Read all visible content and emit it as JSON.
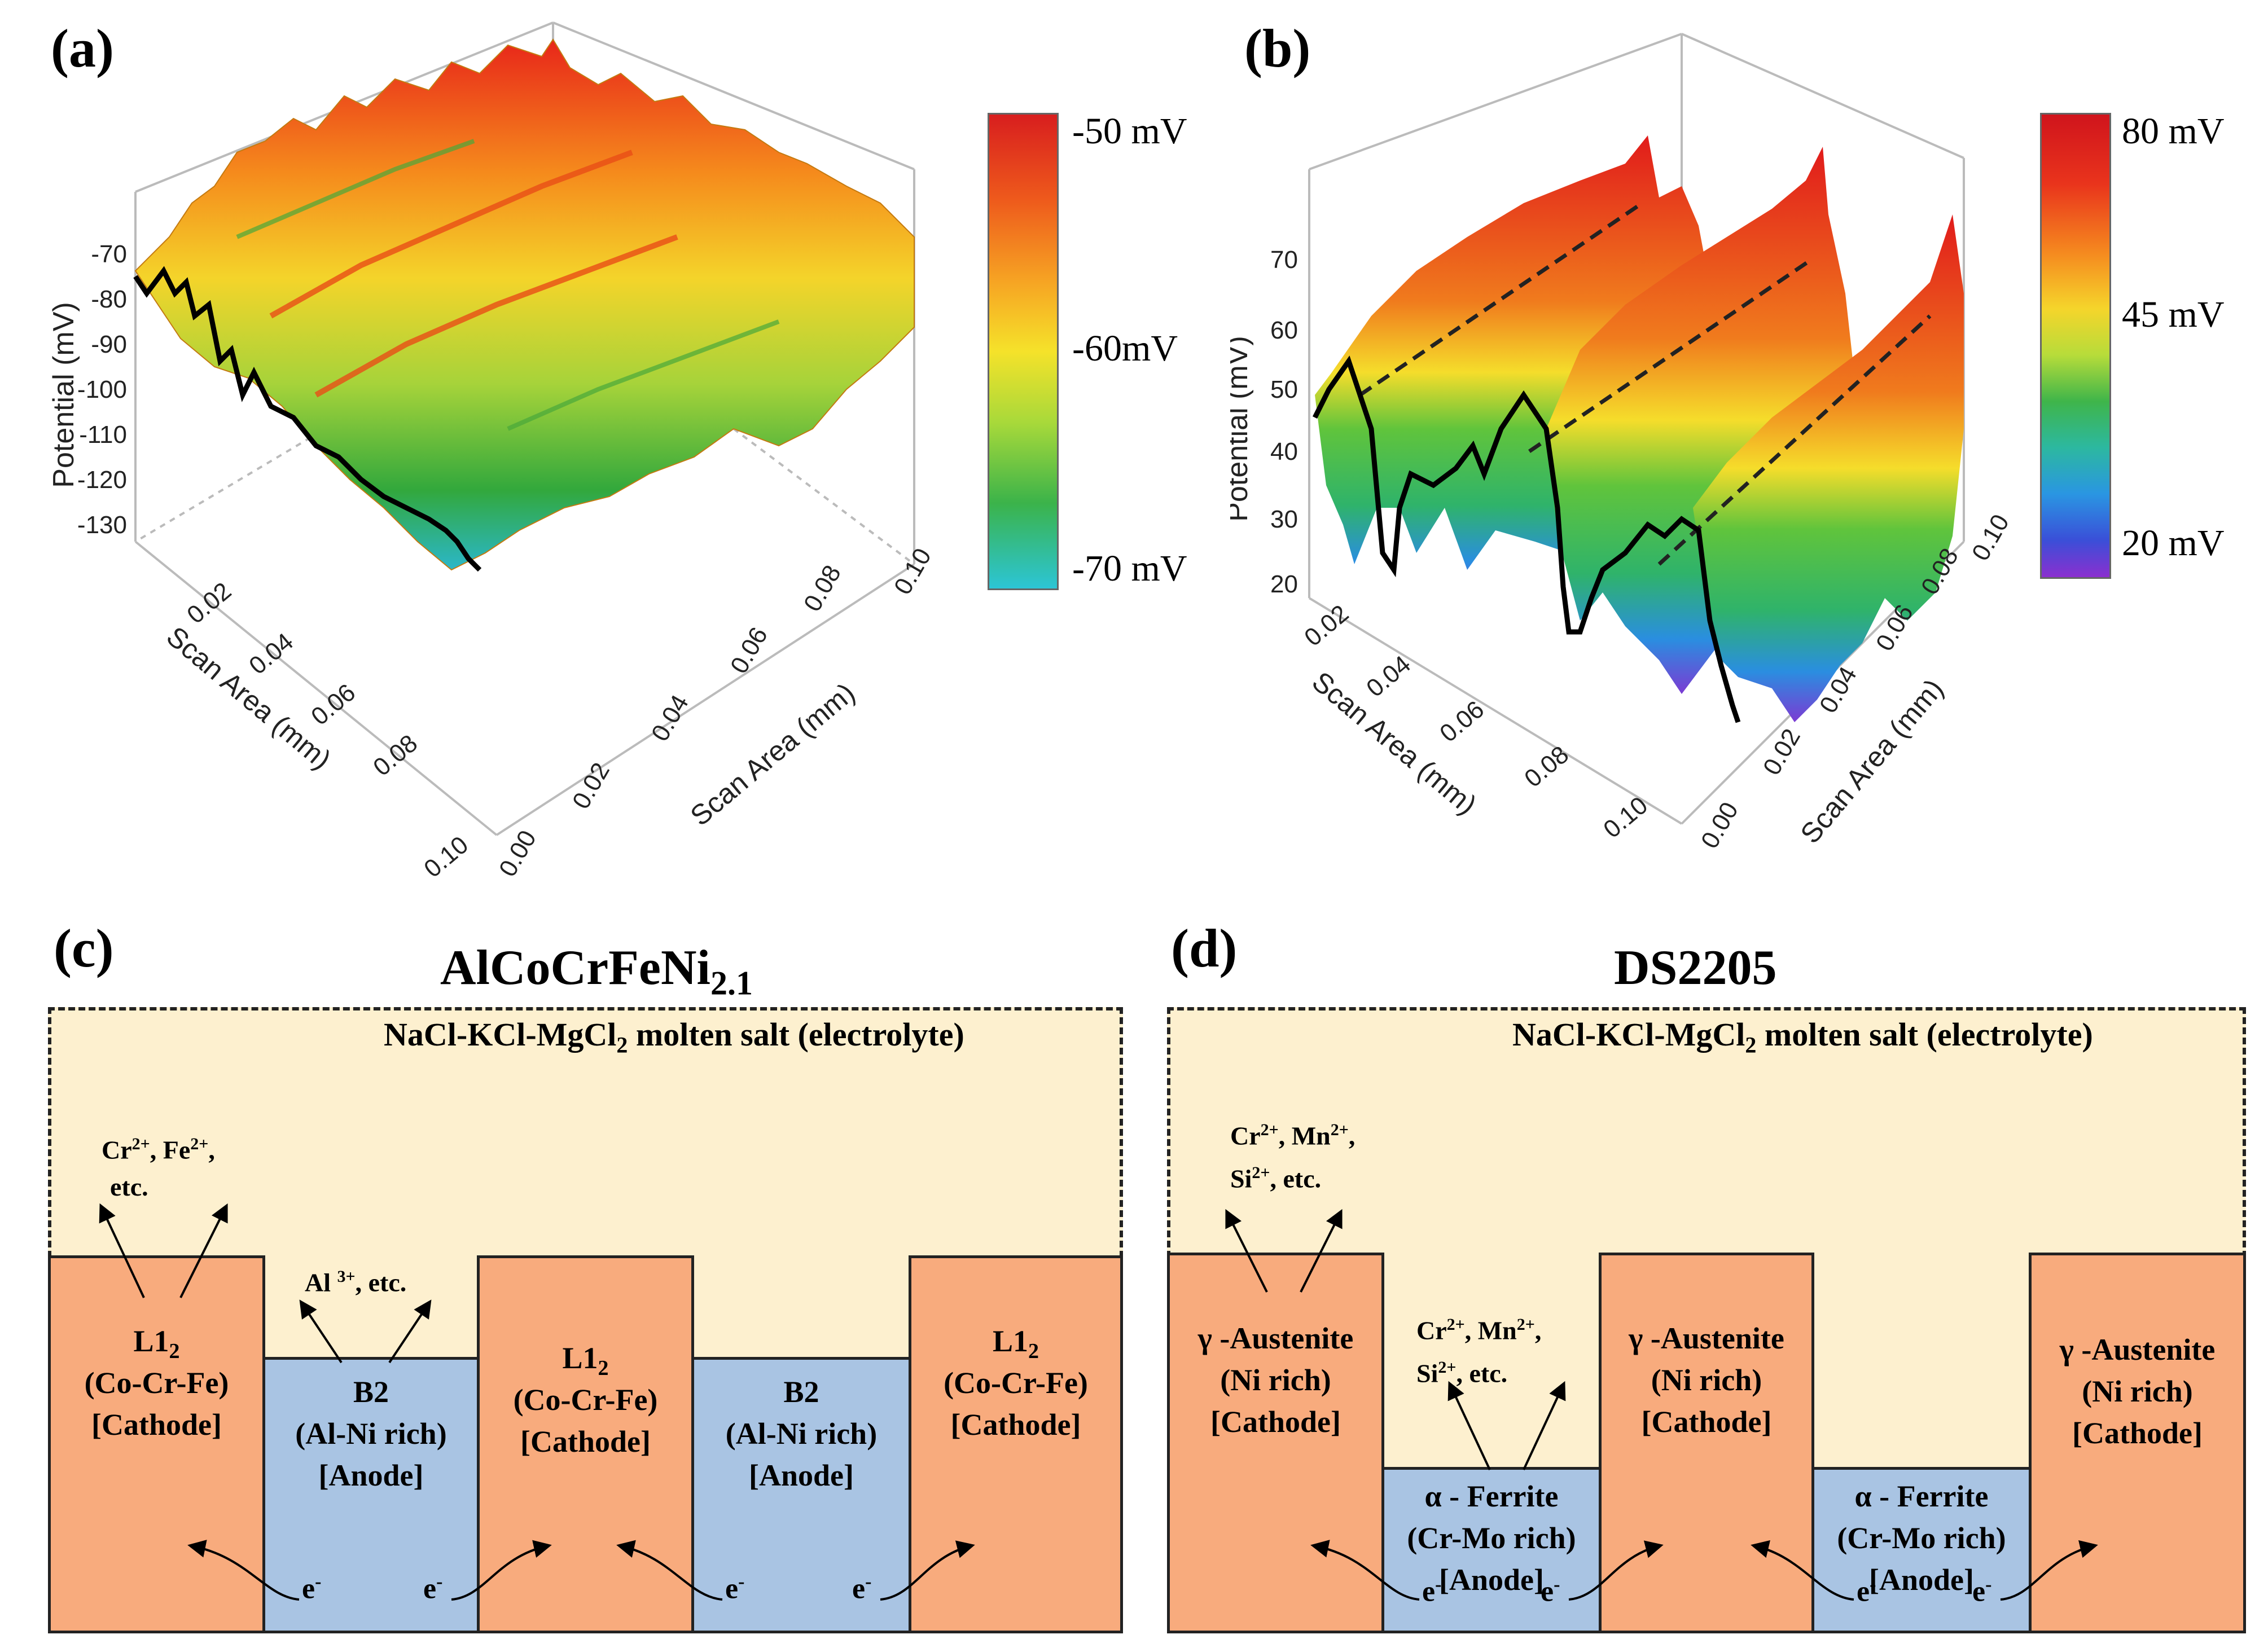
{
  "panel_a": {
    "label": "(a)",
    "z_axis_label": "Potential (mV)",
    "z_ticks": [
      "-70",
      "-80",
      "-90",
      "-100",
      "-110",
      "-120",
      "-130"
    ],
    "x_axis_label": "Scan Area (mm)",
    "x_ticks": [
      "0.02",
      "0.04",
      "0.06",
      "0.08",
      "0.10"
    ],
    "y_axis_label": "Scan Area (mm)",
    "y_ticks": [
      "0.00",
      "0.02",
      "0.04",
      "0.06",
      "0.08",
      "0.10"
    ],
    "colorbar_labels": [
      "-50 mV",
      "-60mV",
      "-70 mV"
    ],
    "colorbar_range_mV": [
      -70,
      -50
    ]
  },
  "panel_b": {
    "label": "(b)",
    "z_axis_label": "Potential (mV)",
    "z_ticks": [
      "70",
      "60",
      "50",
      "40",
      "30",
      "20"
    ],
    "x_axis_label": "Scan Area (mm)",
    "x_ticks": [
      "0.02",
      "0.04",
      "0.06",
      "0.08",
      "0.10"
    ],
    "y_axis_label": "Scan Area (mm)",
    "y_ticks": [
      "0.00",
      "0.02",
      "0.04",
      "0.06",
      "0.08",
      "0.10"
    ],
    "colorbar_labels": [
      "80  mV",
      "45  mV",
      "20  mV"
    ],
    "colorbar_range_mV": [
      20,
      80
    ]
  },
  "panel_c": {
    "label": "(c)",
    "alloy_base": "AlCoCrFeNi",
    "alloy_sub": "2.1",
    "electrolyte": {
      "prefix": "NaCl-KCl-MgCl",
      "sub": "2",
      "suffix": " molten salt (electrolyte)"
    },
    "cathode": {
      "name": "L1",
      "name_sub": "2",
      "composition": "(Co-Cr-Fe)",
      "role": "[Cathode]"
    },
    "anode": {
      "name": "B2",
      "composition": "(Al-Ni rich)",
      "role": "[Anode]"
    },
    "cathode_ions": {
      "line1_a": "Cr",
      "sup1": "2+",
      "line1_b": ", Fe",
      "sup2": "2+",
      "line1_c": ",",
      "line2": "etc."
    },
    "anode_ions": {
      "a": "Al ",
      "sup": "3+",
      "b": ", etc."
    },
    "electron": "e",
    "electron_sup": "-"
  },
  "panel_d": {
    "label": "(d)",
    "alloy": "DS2205",
    "electrolyte": {
      "prefix": "NaCl-KCl-MgCl",
      "sub": "2",
      "suffix": " molten salt (electrolyte)"
    },
    "cathode": {
      "name": "γ -Austenite",
      "composition": "(Ni rich)",
      "role": "[Cathode]"
    },
    "anode": {
      "name": "α - Ferrite",
      "composition": "(Cr-Mo rich)",
      "role": "[Anode]"
    },
    "ions": {
      "a": "Cr",
      "sup1": "2+",
      "b": ", Mn",
      "sup2": "2+",
      "c": ",",
      "d": "Si",
      "sup3": "2+",
      "e": ", etc."
    },
    "electron": "e",
    "electron_sup": "-"
  }
}
